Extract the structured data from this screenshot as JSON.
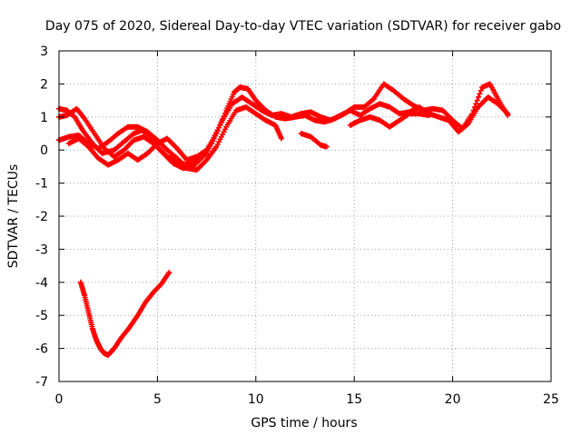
{
  "chart_data": {
    "type": "scatter",
    "title": "Day 075 of 2020, Sidereal Day-to-day VTEC variation (SDTVAR) for receiver gabo",
    "xlabel": "GPS time / hours",
    "ylabel": "SDTVAR / TECUs",
    "xlim": [
      0,
      25
    ],
    "ylim": [
      -7,
      3
    ],
    "xticks": [
      0,
      5,
      10,
      15,
      20,
      25
    ],
    "yticks": [
      -7,
      -6,
      -5,
      -4,
      -3,
      -2,
      -1,
      0,
      1,
      2,
      3
    ],
    "grid": true,
    "marker": "+",
    "color": "#ff0000",
    "series": [
      {
        "name": "track-a",
        "points": [
          [
            0.0,
            1.25
          ],
          [
            0.4,
            1.2
          ],
          [
            0.8,
            1.0
          ],
          [
            1.2,
            0.6
          ],
          [
            1.7,
            0.2
          ],
          [
            2.2,
            -0.1
          ],
          [
            2.8,
            0.0
          ],
          [
            3.3,
            0.25
          ],
          [
            3.8,
            0.5
          ],
          [
            4.2,
            0.6
          ],
          [
            4.6,
            0.45
          ],
          [
            5.0,
            0.1
          ],
          [
            5.5,
            -0.2
          ],
          [
            6.0,
            -0.35
          ],
          [
            6.5,
            -0.45
          ],
          [
            7.0,
            -0.35
          ],
          [
            7.5,
            -0.1
          ],
          [
            8.0,
            0.5
          ],
          [
            8.5,
            1.2
          ],
          [
            8.9,
            1.75
          ],
          [
            9.2,
            1.9
          ],
          [
            9.6,
            1.85
          ],
          [
            10.0,
            1.5
          ],
          [
            10.5,
            1.2
          ],
          [
            11.0,
            1.0
          ],
          [
            11.5,
            0.95
          ],
          [
            12.0,
            1.0
          ],
          [
            12.5,
            1.05
          ],
          [
            13.0,
            0.9
          ],
          [
            13.5,
            0.85
          ],
          [
            14.0,
            0.95
          ],
          [
            14.5,
            1.1
          ],
          [
            15.0,
            1.3
          ],
          [
            15.5,
            1.3
          ],
          [
            16.0,
            1.55
          ],
          [
            16.5,
            2.0
          ],
          [
            17.0,
            1.8
          ],
          [
            17.5,
            1.55
          ],
          [
            18.0,
            1.35
          ],
          [
            18.5,
            1.2
          ],
          [
            19.0,
            1.25
          ],
          [
            19.5,
            1.2
          ],
          [
            20.0,
            0.9
          ],
          [
            20.5,
            0.65
          ],
          [
            21.0,
            1.1
          ],
          [
            21.5,
            1.9
          ],
          [
            21.9,
            2.0
          ],
          [
            22.3,
            1.55
          ],
          [
            22.8,
            1.05
          ]
        ]
      },
      {
        "name": "track-b",
        "points": [
          [
            0.0,
            1.0
          ],
          [
            0.4,
            1.05
          ],
          [
            0.9,
            1.25
          ],
          [
            1.3,
            0.95
          ],
          [
            1.8,
            0.5
          ],
          [
            2.3,
            0.05
          ],
          [
            2.8,
            -0.2
          ],
          [
            3.3,
            0.0
          ],
          [
            3.8,
            0.3
          ],
          [
            4.3,
            0.4
          ],
          [
            4.8,
            0.2
          ],
          [
            5.3,
            -0.1
          ],
          [
            5.8,
            -0.4
          ],
          [
            6.3,
            -0.55
          ],
          [
            6.8,
            -0.5
          ],
          [
            7.3,
            -0.2
          ],
          [
            7.8,
            0.3
          ],
          [
            8.3,
            0.9
          ],
          [
            8.8,
            1.4
          ],
          [
            9.3,
            1.6
          ],
          [
            9.8,
            1.4
          ],
          [
            10.3,
            1.2
          ],
          [
            10.8,
            1.05
          ],
          [
            11.3,
            1.1
          ],
          [
            11.8,
            1.0
          ],
          [
            12.3,
            1.1
          ],
          [
            12.8,
            1.15
          ],
          [
            13.3,
            1.0
          ],
          [
            13.8,
            0.9
          ],
          [
            14.3,
            1.05
          ],
          [
            14.8,
            1.2
          ],
          [
            15.3,
            1.05
          ],
          [
            15.8,
            1.25
          ],
          [
            16.3,
            1.4
          ],
          [
            16.8,
            1.3
          ],
          [
            17.3,
            1.1
          ],
          [
            17.8,
            1.15
          ],
          [
            18.3,
            1.3
          ],
          [
            18.8,
            1.1
          ],
          [
            19.3,
            1.0
          ],
          [
            19.8,
            0.9
          ],
          [
            20.3,
            0.55
          ],
          [
            20.8,
            0.8
          ],
          [
            21.3,
            1.3
          ],
          [
            21.8,
            1.6
          ],
          [
            22.3,
            1.4
          ],
          [
            22.8,
            1.1
          ]
        ]
      },
      {
        "name": "track-c",
        "points": [
          [
            0.0,
            0.3
          ],
          [
            0.5,
            0.4
          ],
          [
            1.0,
            0.45
          ],
          [
            1.5,
            0.2
          ],
          [
            2.0,
            0.05
          ],
          [
            2.5,
            0.25
          ],
          [
            3.0,
            0.5
          ],
          [
            3.5,
            0.7
          ],
          [
            4.0,
            0.7
          ],
          [
            4.5,
            0.55
          ],
          [
            5.0,
            0.3
          ],
          [
            5.5,
            0.0
          ],
          [
            6.0,
            -0.25
          ],
          [
            6.5,
            -0.55
          ],
          [
            7.0,
            -0.6
          ],
          [
            7.5,
            -0.3
          ],
          [
            8.0,
            0.1
          ],
          [
            8.5,
            0.7
          ],
          [
            9.0,
            1.2
          ],
          [
            9.5,
            1.3
          ],
          [
            10.0,
            1.1
          ],
          [
            10.5,
            0.9
          ],
          [
            11.0,
            0.75
          ],
          [
            11.3,
            0.35
          ]
        ]
      },
      {
        "name": "track-d",
        "points": [
          [
            0.5,
            0.2
          ],
          [
            1.0,
            0.35
          ],
          [
            1.5,
            0.1
          ],
          [
            2.0,
            -0.25
          ],
          [
            2.5,
            -0.45
          ],
          [
            3.0,
            -0.3
          ],
          [
            3.5,
            -0.1
          ],
          [
            4.0,
            -0.3
          ],
          [
            4.5,
            -0.1
          ],
          [
            5.0,
            0.2
          ],
          [
            5.5,
            0.35
          ],
          [
            6.0,
            0.05
          ],
          [
            6.5,
            -0.3
          ],
          [
            7.0,
            -0.2
          ],
          [
            7.5,
            0.0
          ]
        ]
      },
      {
        "name": "track-e",
        "points": [
          [
            12.3,
            0.5
          ],
          [
            12.8,
            0.4
          ],
          [
            13.3,
            0.15
          ],
          [
            13.6,
            0.1
          ]
        ]
      },
      {
        "name": "track-f",
        "points": [
          [
            14.8,
            0.75
          ],
          [
            15.3,
            0.9
          ],
          [
            15.8,
            1.0
          ],
          [
            16.3,
            0.9
          ],
          [
            16.8,
            0.7
          ],
          [
            17.3,
            0.9
          ],
          [
            17.8,
            1.1
          ],
          [
            18.3,
            1.1
          ],
          [
            18.8,
            1.05
          ]
        ]
      },
      {
        "name": "track-g",
        "points": [
          [
            1.1,
            -4.0
          ],
          [
            1.3,
            -4.4
          ],
          [
            1.5,
            -4.9
          ],
          [
            1.7,
            -5.4
          ],
          [
            1.9,
            -5.75
          ],
          [
            2.1,
            -6.0
          ],
          [
            2.3,
            -6.15
          ],
          [
            2.5,
            -6.2
          ],
          [
            2.8,
            -6.0
          ],
          [
            3.2,
            -5.65
          ],
          [
            3.6,
            -5.35
          ],
          [
            4.0,
            -5.0
          ],
          [
            4.4,
            -4.6
          ],
          [
            4.8,
            -4.3
          ],
          [
            5.2,
            -4.05
          ],
          [
            5.6,
            -3.7
          ]
        ]
      }
    ]
  }
}
